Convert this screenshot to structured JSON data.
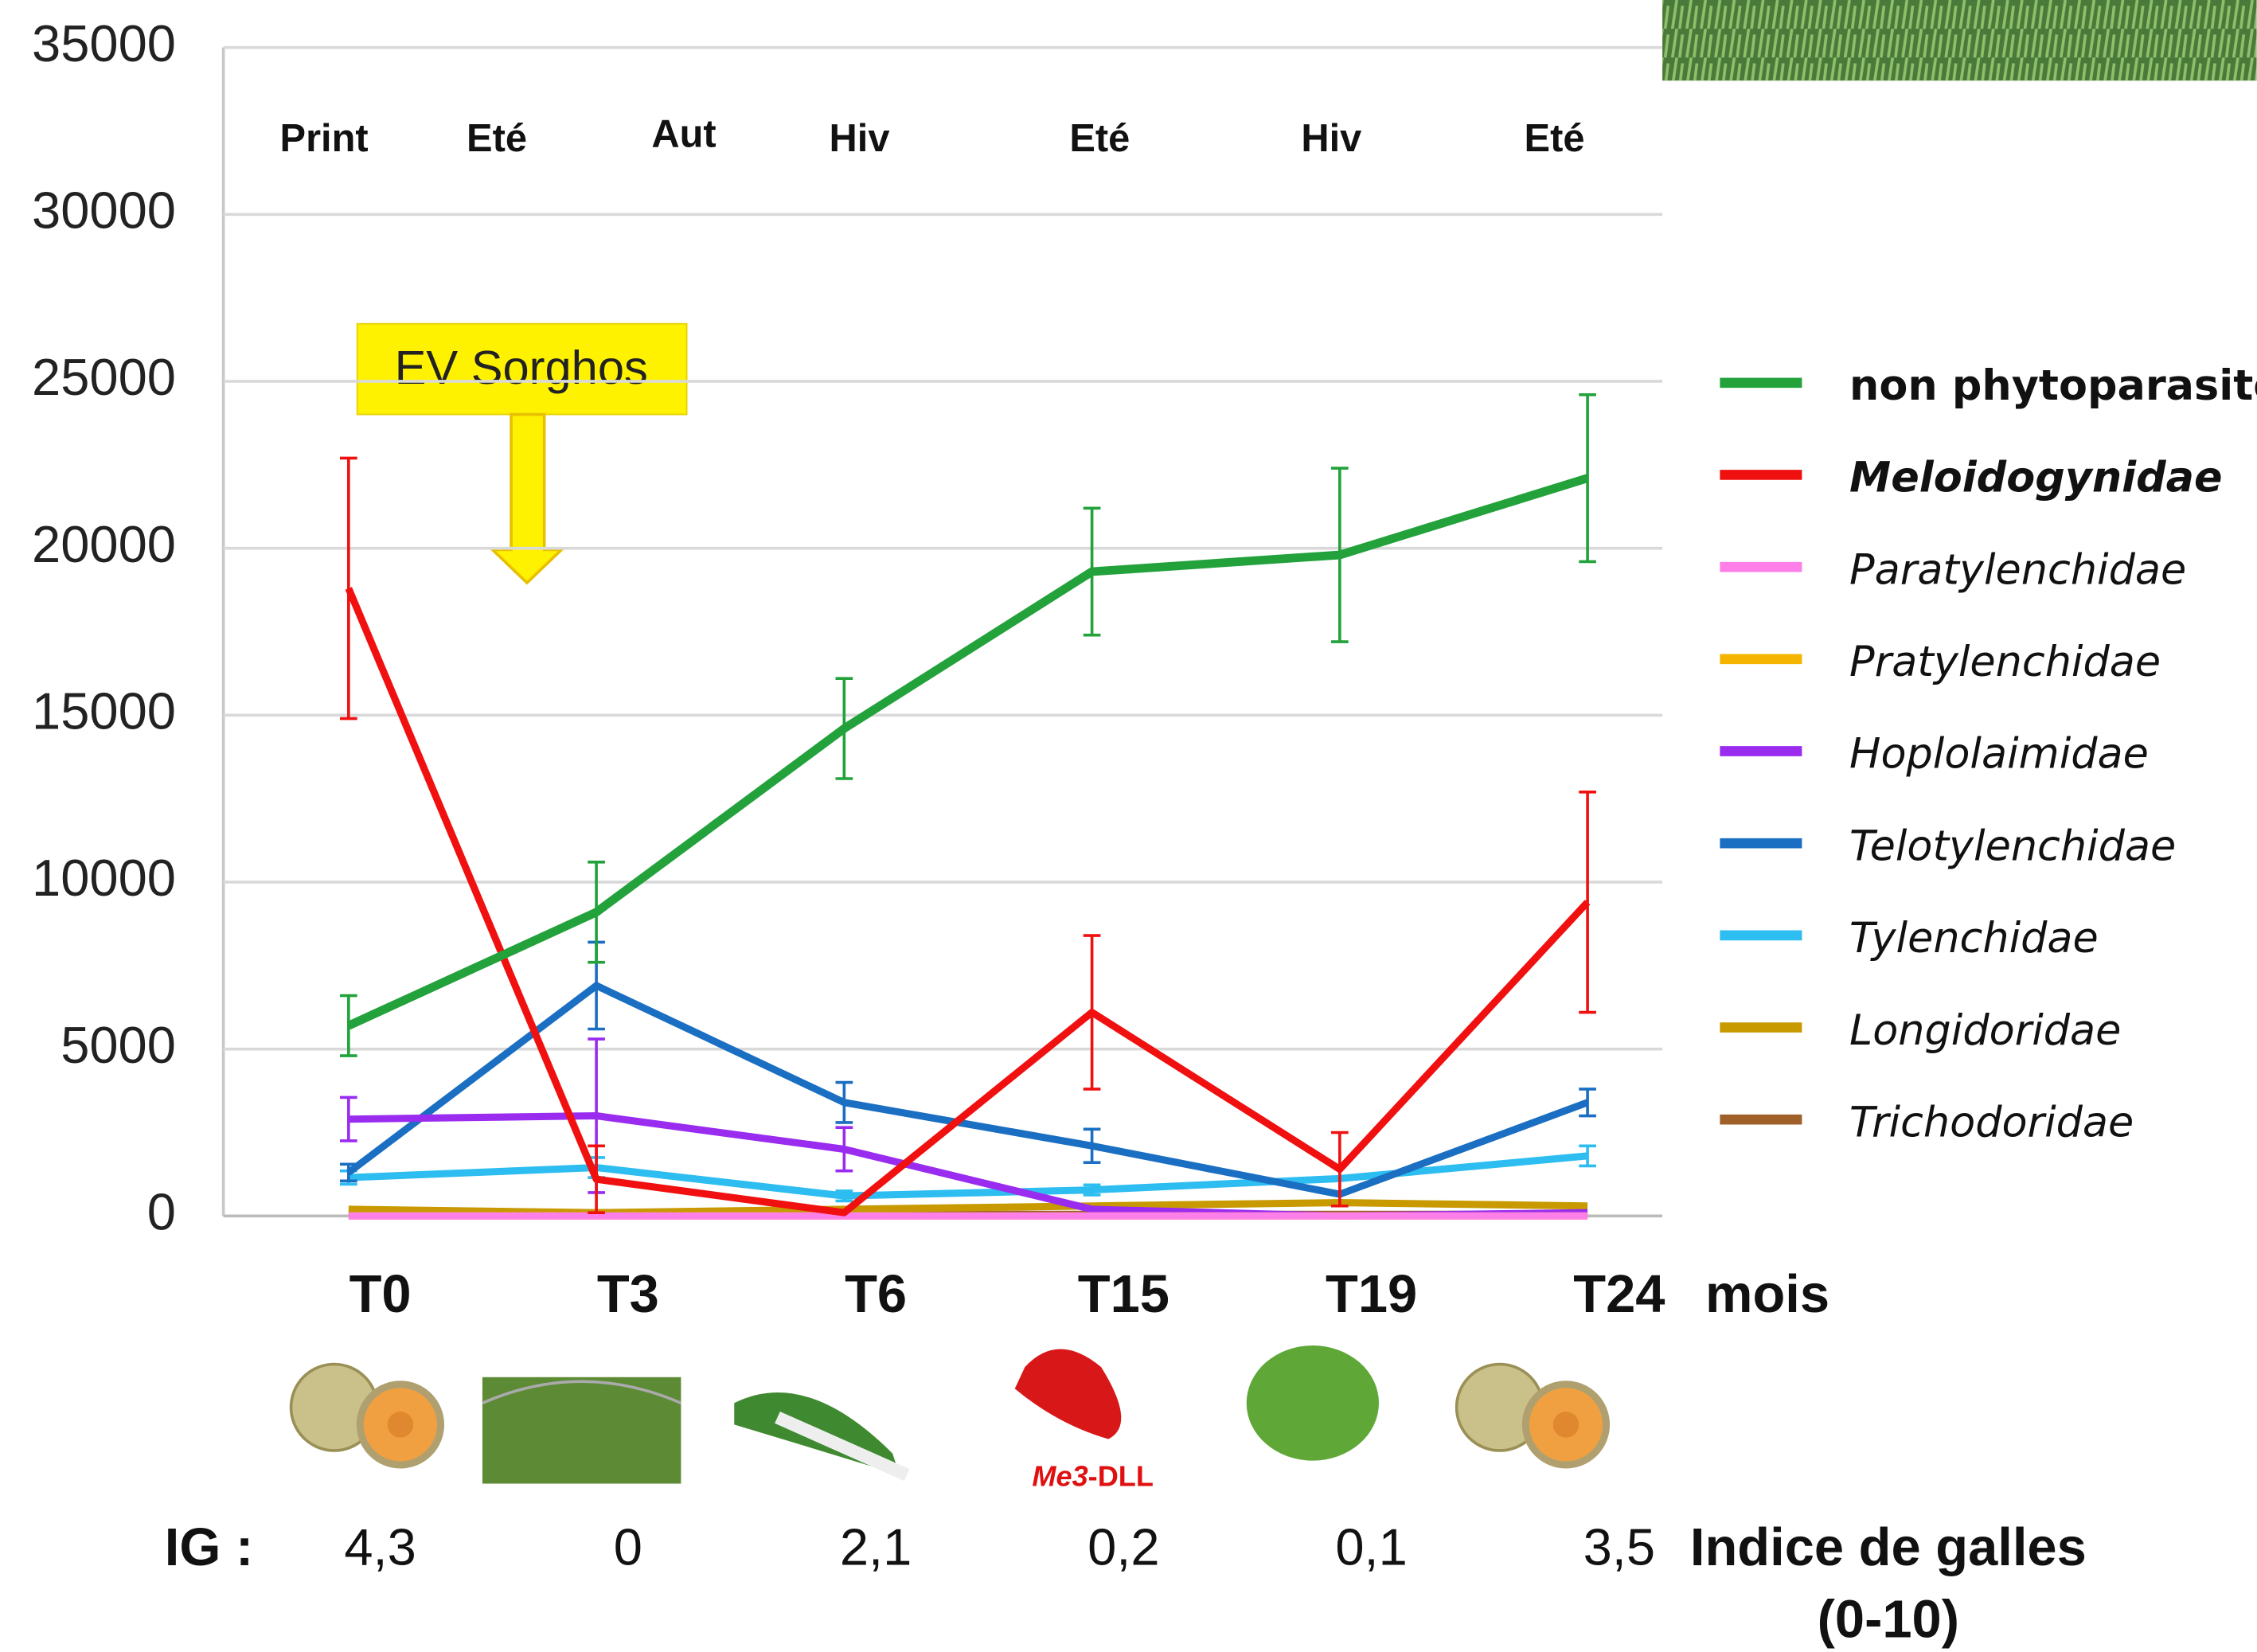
{
  "chart_data": {
    "type": "line",
    "categories": [
      "T0",
      "T3",
      "T6",
      "T15",
      "T19",
      "T24"
    ],
    "x_axis_unit": "mois",
    "ylim": [
      0,
      35000
    ],
    "yticks": [
      0,
      5000,
      10000,
      15000,
      20000,
      25000,
      30000,
      35000
    ],
    "grid": true,
    "seasons": [
      "Print",
      "Eté",
      "Aut",
      "Hiv",
      "Eté",
      "Hiv",
      "Eté"
    ],
    "annotation": "EV Sorghos",
    "variety_label": {
      "italic": "Me3",
      "rest": "-DLL"
    },
    "gall_index": {
      "label": "IG :",
      "values": [
        "4,3",
        "0",
        "2,1",
        "0,2",
        "0,1",
        "3,5"
      ],
      "title": "Indice de galles",
      "range": "(0-10)"
    },
    "legend": "right",
    "series": [
      {
        "name": "non phytoparasites",
        "color": "#23a23c",
        "values": [
          5700,
          9100,
          14600,
          19300,
          19800,
          22100
        ],
        "errors": [
          900,
          1500,
          1500,
          1900,
          2600,
          2500
        ]
      },
      {
        "name": "Meloidogynidae",
        "color": "#f01010",
        "values": [
          18800,
          1100,
          100,
          6100,
          1400,
          9400
        ],
        "errors": [
          3900,
          1000,
          0,
          2300,
          1100,
          3300
        ]
      },
      {
        "name": "Paratylenchidae",
        "color": "#ff7fe8",
        "values": [
          0,
          0,
          0,
          0,
          0,
          0
        ]
      },
      {
        "name": "Pratylenchidae",
        "color": "#f5b400",
        "values": [
          0,
          0,
          0,
          0,
          0,
          0
        ]
      },
      {
        "name": "Hoplolaimidae",
        "color": "#9a2cf0",
        "values": [
          2900,
          3000,
          2000,
          200,
          0,
          100
        ],
        "errors": [
          650,
          2300,
          650,
          0,
          0,
          0
        ]
      },
      {
        "name": "Telotylenchidae",
        "color": "#1b6fc2",
        "values": [
          1300,
          6900,
          3400,
          2100,
          650,
          3400
        ],
        "errors": [
          250,
          1300,
          600,
          500,
          0,
          400
        ]
      },
      {
        "name": "Tylenchidae",
        "color": "#2dbdf0",
        "values": [
          1150,
          1450,
          600,
          780,
          1120,
          1800
        ],
        "errors": [
          200,
          300,
          150,
          150,
          0,
          300
        ]
      },
      {
        "name": "Longidoridae",
        "color": "#c89a00",
        "values": [
          200,
          100,
          200,
          300,
          400,
          300
        ]
      },
      {
        "name": "Trichodoridae",
        "color": "#a0602a",
        "values": [
          50,
          50,
          50,
          50,
          50,
          50
        ]
      }
    ]
  }
}
